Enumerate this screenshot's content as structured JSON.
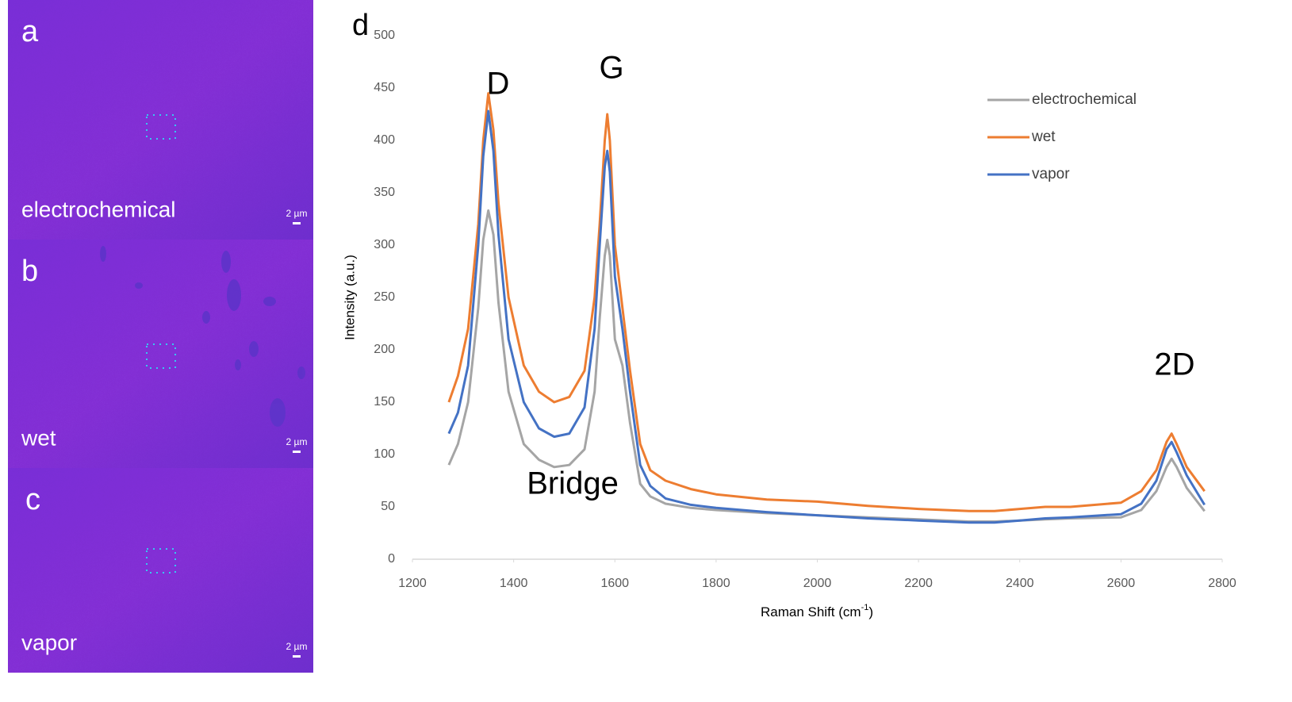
{
  "panels": [
    {
      "letter": "a",
      "caption": "electrochemical",
      "scale": "2 µm"
    },
    {
      "letter": "b",
      "caption": "wet",
      "scale": "2 µm"
    },
    {
      "letter": "c",
      "caption": "vapor",
      "scale": "2 µm"
    }
  ],
  "chart_data": {
    "type": "line",
    "panel_letter": "d",
    "x_label": {
      "text": "Raman Shift (cm",
      "superscript": "-1",
      "suffix": ")"
    },
    "y_label": "Intensity (a.u.)",
    "annotations": [
      "D",
      "G",
      "Bridge",
      "2D"
    ],
    "xlim": [
      1200,
      2800
    ],
    "xticks": [
      1200,
      1400,
      1600,
      1800,
      2000,
      2200,
      2400,
      2600,
      2800
    ],
    "ylim": [
      0,
      500
    ],
    "yticks": [
      0,
      50,
      100,
      150,
      200,
      250,
      300,
      350,
      400,
      450,
      500
    ],
    "grid": false,
    "legend": "top-right",
    "x": [
      1272,
      1290,
      1310,
      1330,
      1340,
      1350,
      1360,
      1370,
      1390,
      1420,
      1450,
      1480,
      1510,
      1540,
      1560,
      1570,
      1580,
      1585,
      1590,
      1600,
      1615,
      1630,
      1650,
      1670,
      1700,
      1750,
      1800,
      1900,
      2000,
      2100,
      2200,
      2300,
      2350,
      2400,
      2450,
      2500,
      2600,
      2640,
      2670,
      2690,
      2700,
      2710,
      2730,
      2765
    ],
    "series": [
      {
        "name": "electrochemical",
        "color": "#a5a5a5",
        "values": [
          90,
          110,
          150,
          240,
          305,
          333,
          310,
          245,
          160,
          110,
          95,
          88,
          90,
          105,
          160,
          230,
          290,
          305,
          290,
          210,
          185,
          130,
          72,
          60,
          53,
          49,
          47,
          44,
          42,
          40,
          38,
          36,
          36,
          37,
          38,
          39,
          40,
          47,
          65,
          88,
          96,
          88,
          68,
          46
        ]
      },
      {
        "name": "wet",
        "color": "#ed7d31",
        "values": [
          150,
          175,
          220,
          320,
          400,
          445,
          410,
          340,
          250,
          185,
          160,
          150,
          155,
          180,
          250,
          320,
          400,
          425,
          400,
          300,
          240,
          180,
          110,
          85,
          75,
          67,
          62,
          57,
          55,
          51,
          48,
          46,
          46,
          48,
          50,
          50,
          54,
          65,
          85,
          112,
          120,
          110,
          88,
          65
        ]
      },
      {
        "name": "vapor",
        "color": "#4472c4",
        "values": [
          120,
          140,
          185,
          300,
          385,
          428,
          390,
          310,
          210,
          150,
          125,
          117,
          120,
          145,
          220,
          300,
          375,
          390,
          370,
          270,
          220,
          160,
          90,
          70,
          58,
          52,
          49,
          45,
          42,
          39,
          37,
          35,
          35,
          37,
          39,
          40,
          43,
          53,
          75,
          105,
          112,
          102,
          80,
          52
        ]
      }
    ]
  }
}
